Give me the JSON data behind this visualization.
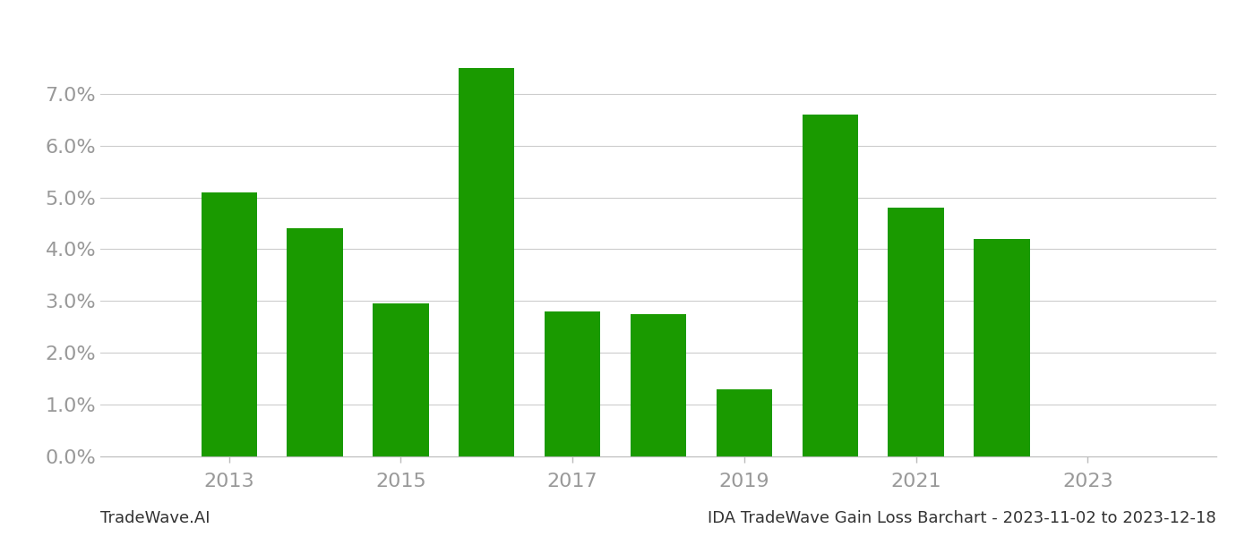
{
  "years": [
    2013,
    2014,
    2015,
    2016,
    2017,
    2018,
    2019,
    2020,
    2021,
    2022
  ],
  "values": [
    0.051,
    0.044,
    0.0295,
    0.075,
    0.028,
    0.0275,
    0.013,
    0.066,
    0.048,
    0.042
  ],
  "bar_color": "#1a9a00",
  "bar_width": 0.65,
  "ylim": [
    0,
    0.085
  ],
  "yticks": [
    0.0,
    0.01,
    0.02,
    0.03,
    0.04,
    0.05,
    0.06,
    0.07
  ],
  "xticks": [
    2013,
    2015,
    2017,
    2019,
    2021,
    2023
  ],
  "background_color": "#ffffff",
  "grid_color": "#cccccc",
  "footer_left": "TradeWave.AI",
  "footer_right": "IDA TradeWave Gain Loss Barchart - 2023-11-02 to 2023-12-18",
  "footer_fontsize": 13,
  "tick_label_color": "#999999",
  "tick_fontsize": 16
}
